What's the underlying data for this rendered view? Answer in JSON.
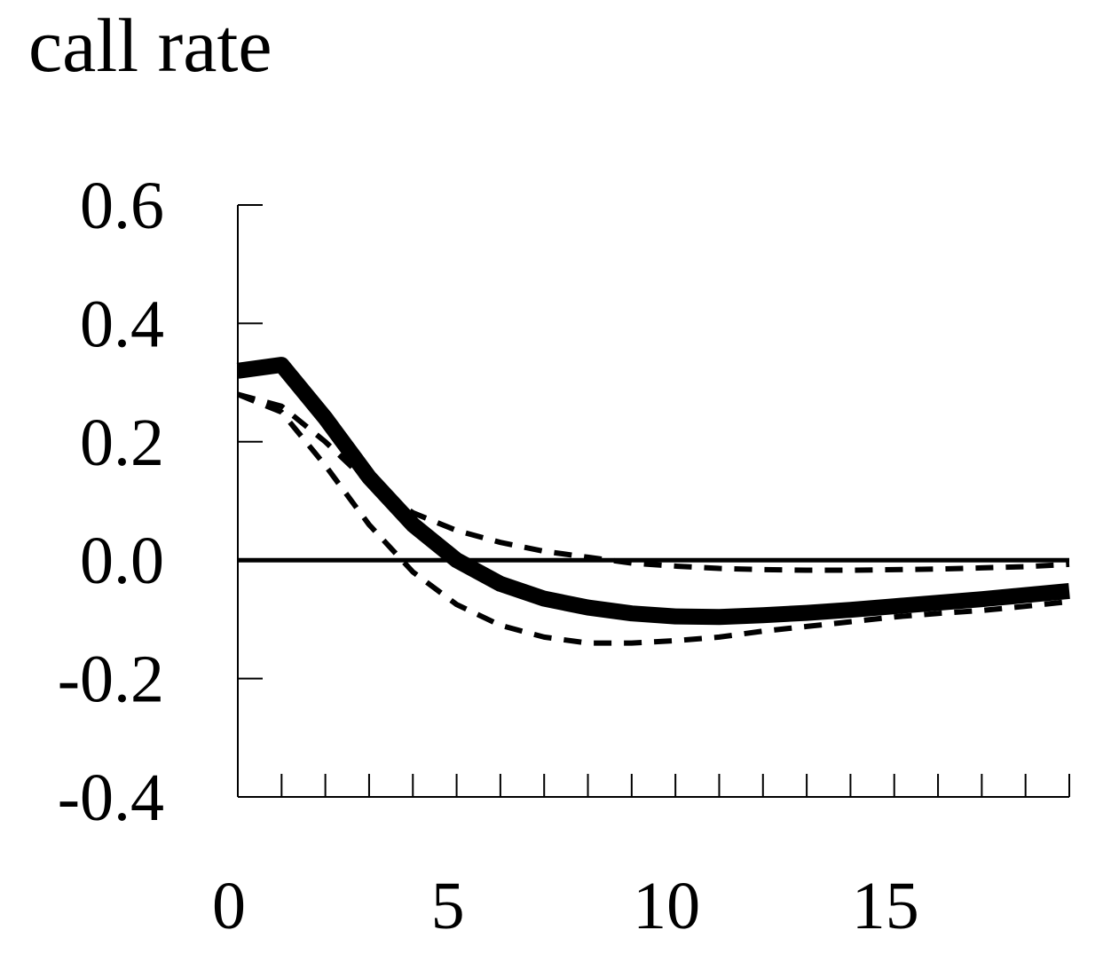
{
  "chart_data": {
    "type": "line",
    "title": "call rate",
    "xlabel": "",
    "ylabel": "",
    "xlim": [
      0,
      19
    ],
    "ylim": [
      -0.4,
      0.6
    ],
    "grid": false,
    "legend": "none",
    "x_ticks": [
      0,
      5,
      10,
      15
    ],
    "x_tick_labels": [
      "0",
      "5",
      "10",
      "15"
    ],
    "y_ticks": [
      0.6,
      0.4,
      0.2,
      0.0,
      -0.2,
      -0.4
    ],
    "y_tick_labels": [
      "0.6",
      "0.4",
      "0.2",
      "0.0",
      "-0.2",
      "-0.4"
    ],
    "x": [
      0,
      1,
      2,
      3,
      4,
      5,
      6,
      7,
      8,
      9,
      10,
      11,
      12,
      13,
      14,
      15,
      16,
      17,
      18,
      19
    ],
    "series": [
      {
        "style": "solid-thick",
        "color": "#000000",
        "values": [
          0.32,
          0.33,
          0.24,
          0.14,
          0.06,
          0.0,
          -0.04,
          -0.065,
          -0.08,
          -0.09,
          -0.095,
          -0.096,
          -0.093,
          -0.089,
          -0.084,
          -0.078,
          -0.072,
          -0.066,
          -0.059,
          -0.052
        ]
      },
      {
        "style": "dashed-upper",
        "color": "#000000",
        "values": [
          0.28,
          0.26,
          0.2,
          0.13,
          0.08,
          0.05,
          0.03,
          0.015,
          0.005,
          -0.005,
          -0.01,
          -0.014,
          -0.016,
          -0.017,
          -0.017,
          -0.016,
          -0.015,
          -0.013,
          -0.011,
          -0.007
        ]
      },
      {
        "style": "dashed-lower",
        "color": "#000000",
        "values": [
          0.28,
          0.25,
          0.16,
          0.06,
          -0.02,
          -0.075,
          -0.11,
          -0.13,
          -0.14,
          -0.14,
          -0.136,
          -0.13,
          -0.12,
          -0.112,
          -0.104,
          -0.096,
          -0.09,
          -0.085,
          -0.078,
          -0.07
        ]
      }
    ],
    "zero_line": {
      "value": 0.0,
      "color": "#000000"
    }
  }
}
